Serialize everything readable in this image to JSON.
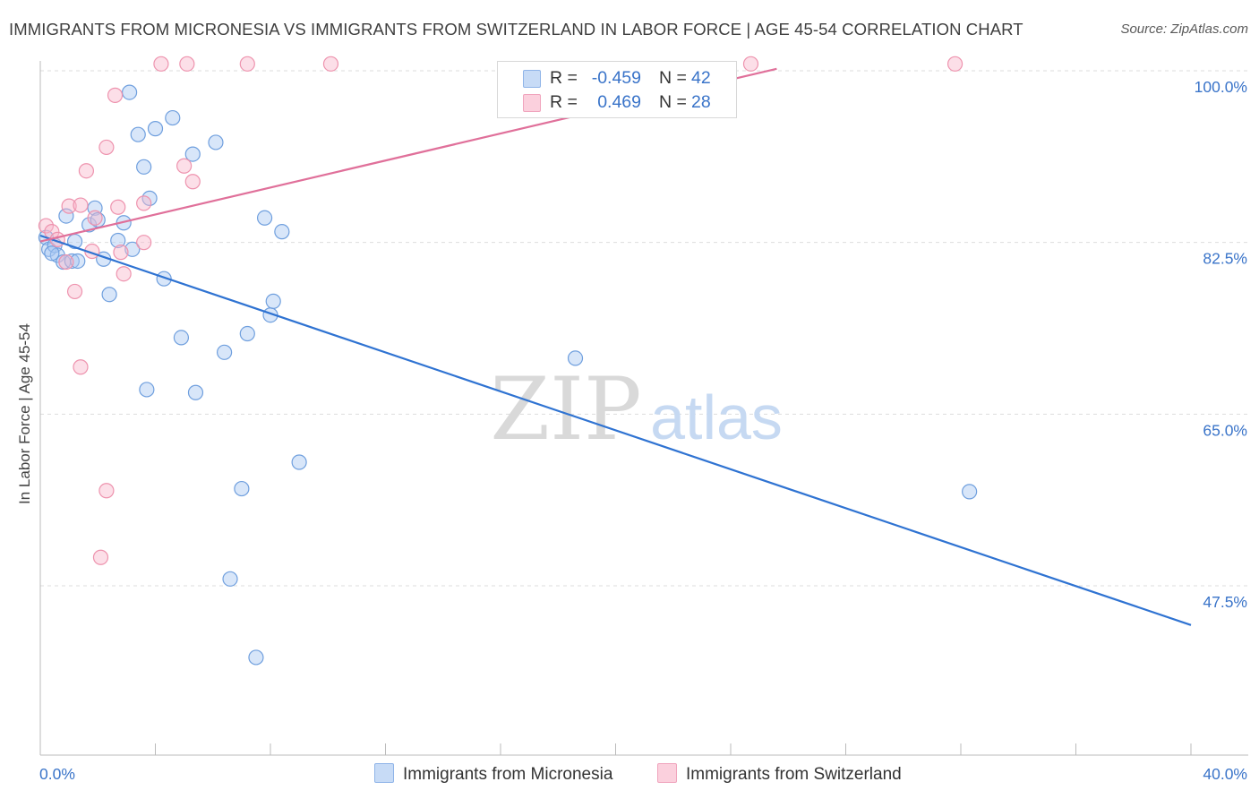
{
  "title": "IMMIGRANTS FROM MICRONESIA VS IMMIGRANTS FROM SWITZERLAND IN LABOR FORCE | AGE 45-54 CORRELATION CHART",
  "source": "Source: ZipAtlas.com",
  "watermark": {
    "zip": "ZIP",
    "atlas": "atlas"
  },
  "legend_top": [
    {
      "r_label": "R =",
      "r_value": "-0.459",
      "n_label": "N =",
      "n_value": "42",
      "color": "#a9c8f2"
    },
    {
      "r_label": "R =",
      "r_value": "0.469",
      "n_label": "N =",
      "n_value": "28",
      "color": "#f8b8cb"
    }
  ],
  "legend_bottom": [
    {
      "label": "Immigrants from Micronesia",
      "color": "#a9c8f2"
    },
    {
      "label": "Immigrants from Switzerland",
      "color": "#f8b8cb"
    }
  ],
  "chart_data": {
    "type": "scatter",
    "title": "IMMIGRANTS FROM MICRONESIA VS IMMIGRANTS FROM SWITZERLAND IN LABOR FORCE | AGE 45-54 CORRELATION CHART",
    "xlabel": "",
    "ylabel": "In Labor Force | Age 45-54",
    "xlim": [
      0,
      40
    ],
    "ylim": [
      32.5,
      101.5
    ],
    "x_tick_labels": [
      {
        "value": 0,
        "label": "0.0%"
      },
      {
        "value": 40,
        "label": "40.0%"
      }
    ],
    "y_ticks": [
      {
        "value": 100,
        "label": "100.0%"
      },
      {
        "value": 82.5,
        "label": "82.5%"
      },
      {
        "value": 65,
        "label": "65.0%"
      },
      {
        "value": 47.5,
        "label": "47.5%"
      }
    ],
    "x_minor_ticks": [
      0,
      4,
      8,
      12,
      16,
      20,
      24,
      28,
      32,
      36,
      40
    ],
    "grid": true,
    "series": [
      {
        "name": "Immigrants from Micronesia",
        "color": "#a9c8f2",
        "stroke": "#6f9fde",
        "trend_color": "#2f73d2",
        "trend": {
          "x": [
            0,
            40
          ],
          "y": [
            83.2,
            43.5
          ]
        },
        "points": [
          [
            0.2,
            83.0
          ],
          [
            0.3,
            81.8
          ],
          [
            0.5,
            82.2
          ],
          [
            0.6,
            81.2
          ],
          [
            0.8,
            80.5
          ],
          [
            0.9,
            85.2
          ],
          [
            1.1,
            80.6
          ],
          [
            1.2,
            82.6
          ],
          [
            1.3,
            80.6
          ],
          [
            1.7,
            84.3
          ],
          [
            1.9,
            86.0
          ],
          [
            2.0,
            84.8
          ],
          [
            2.2,
            80.8
          ],
          [
            2.4,
            77.2
          ],
          [
            2.7,
            82.7
          ],
          [
            2.9,
            84.5
          ],
          [
            3.1,
            97.8
          ],
          [
            3.4,
            93.5
          ],
          [
            3.2,
            81.8
          ],
          [
            3.6,
            90.2
          ],
          [
            3.8,
            87.0
          ],
          [
            4.0,
            94.1
          ],
          [
            4.3,
            78.8
          ],
          [
            4.6,
            95.2
          ],
          [
            4.9,
            72.8
          ],
          [
            5.3,
            91.5
          ],
          [
            5.4,
            67.2
          ],
          [
            3.7,
            67.5
          ],
          [
            6.1,
            92.7
          ],
          [
            6.4,
            71.3
          ],
          [
            7.0,
            57.4
          ],
          [
            6.6,
            48.2
          ],
          [
            7.2,
            73.2
          ],
          [
            7.8,
            85.0
          ],
          [
            8.0,
            75.1
          ],
          [
            8.1,
            76.5
          ],
          [
            8.4,
            83.6
          ],
          [
            9.0,
            60.1
          ],
          [
            7.5,
            40.2
          ],
          [
            18.6,
            70.7
          ],
          [
            32.3,
            57.1
          ],
          [
            0.4,
            81.4
          ]
        ]
      },
      {
        "name": "Immigrants from Switzerland",
        "color": "#f8b8cb",
        "stroke": "#ee93ae",
        "trend_color": "#e0709a",
        "trend": {
          "x": [
            0,
            25.6
          ],
          "y": [
            82.6,
            100.2
          ]
        },
        "points": [
          [
            0.2,
            84.2
          ],
          [
            0.4,
            83.6
          ],
          [
            0.6,
            82.8
          ],
          [
            0.9,
            80.5
          ],
          [
            1.0,
            86.2
          ],
          [
            1.2,
            77.5
          ],
          [
            1.4,
            86.3
          ],
          [
            1.4,
            69.8
          ],
          [
            1.6,
            89.8
          ],
          [
            1.8,
            81.6
          ],
          [
            1.9,
            85.0
          ],
          [
            2.3,
            92.2
          ],
          [
            2.3,
            57.2
          ],
          [
            2.1,
            50.4
          ],
          [
            2.6,
            97.5
          ],
          [
            2.7,
            86.1
          ],
          [
            2.8,
            81.5
          ],
          [
            2.9,
            79.3
          ],
          [
            3.6,
            86.5
          ],
          [
            3.6,
            82.5
          ],
          [
            4.2,
            100.7
          ],
          [
            5.1,
            100.7
          ],
          [
            5.0,
            90.3
          ],
          [
            5.3,
            88.7
          ],
          [
            7.2,
            100.7
          ],
          [
            10.1,
            100.7
          ],
          [
            24.7,
            100.7
          ],
          [
            31.8,
            100.7
          ]
        ]
      }
    ]
  }
}
